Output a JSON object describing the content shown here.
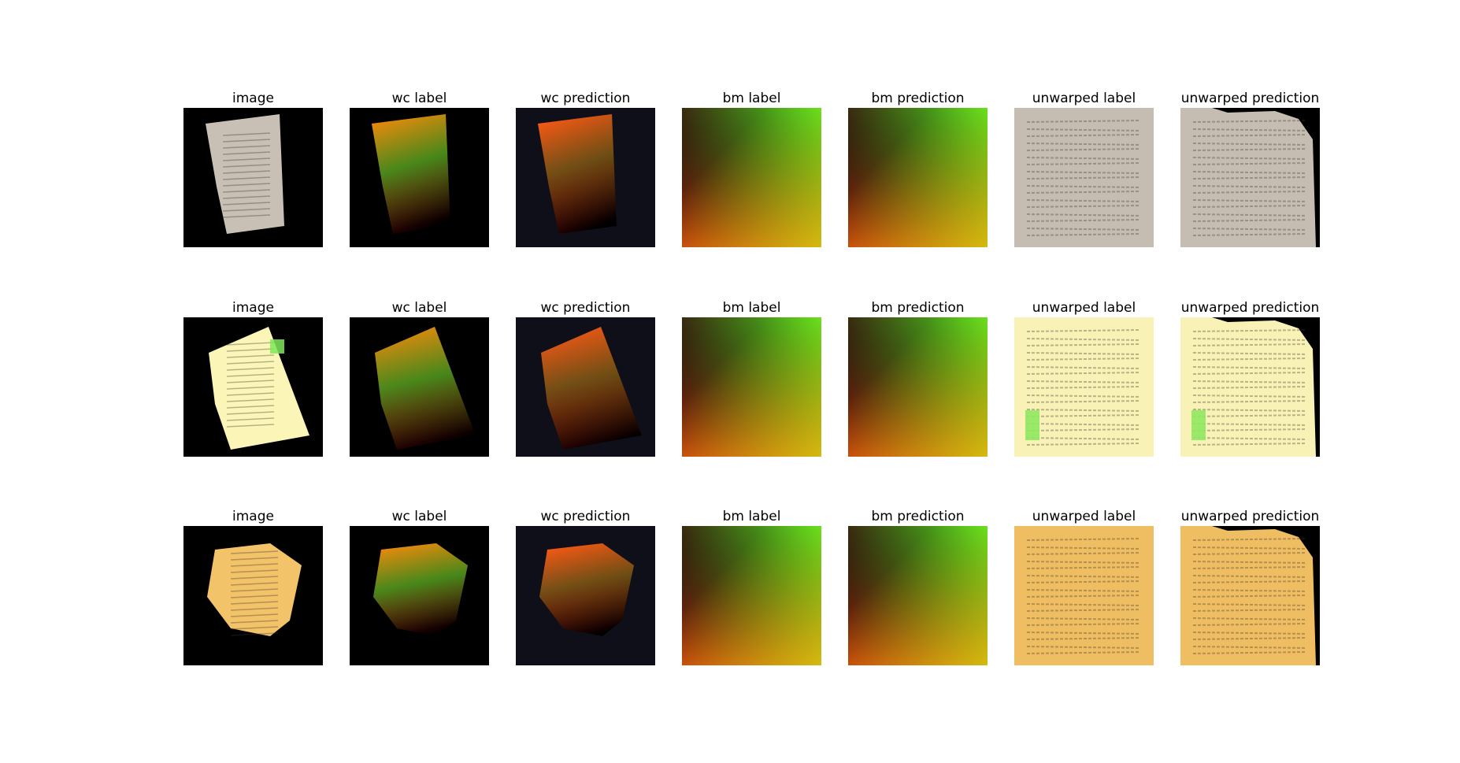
{
  "figure": {
    "rows": [
      {
        "panels": [
          {
            "title": "image",
            "kind": "image",
            "paper": "#c8c0b4"
          },
          {
            "title": "wc label",
            "kind": "wc_label"
          },
          {
            "title": "wc prediction",
            "kind": "wc_pred"
          },
          {
            "title": "bm label",
            "kind": "bm"
          },
          {
            "title": "bm prediction",
            "kind": "bm_pred"
          },
          {
            "title": "unwarped label",
            "kind": "unwarp",
            "paper": "#c6bdb2"
          },
          {
            "title": "unwarped prediction",
            "kind": "unwarp_pred",
            "paper": "#c6bdb2"
          }
        ]
      },
      {
        "panels": [
          {
            "title": "image",
            "kind": "image",
            "paper": "#fbf6b8"
          },
          {
            "title": "wc label",
            "kind": "wc_label"
          },
          {
            "title": "wc prediction",
            "kind": "wc_pred"
          },
          {
            "title": "bm label",
            "kind": "bm"
          },
          {
            "title": "bm prediction",
            "kind": "bm_pred"
          },
          {
            "title": "unwarped label",
            "kind": "unwarp",
            "paper": "#f8f2b6"
          },
          {
            "title": "unwarped prediction",
            "kind": "unwarp_pred",
            "paper": "#f8f2b6"
          }
        ]
      },
      {
        "panels": [
          {
            "title": "image",
            "kind": "image",
            "paper": "#f3c36a"
          },
          {
            "title": "wc label",
            "kind": "wc_label"
          },
          {
            "title": "wc prediction",
            "kind": "wc_pred"
          },
          {
            "title": "bm label",
            "kind": "bm"
          },
          {
            "title": "bm prediction",
            "kind": "bm_pred"
          },
          {
            "title": "unwarped label",
            "kind": "unwarp",
            "paper": "#f0be62"
          },
          {
            "title": "unwarped prediction",
            "kind": "unwarp_pred",
            "paper": "#f0be62"
          }
        ]
      }
    ]
  }
}
